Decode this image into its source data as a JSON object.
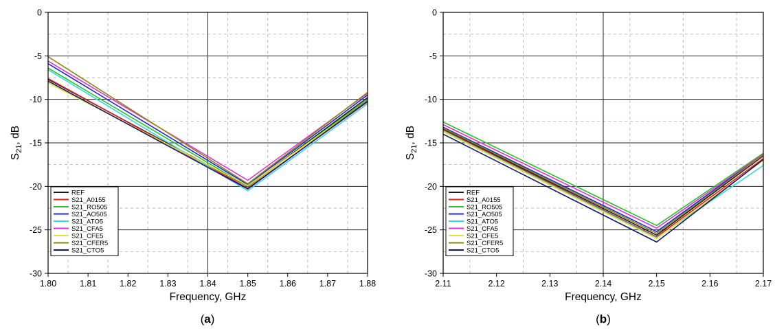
{
  "chart_data": [
    {
      "type": "line",
      "panel_label": "(a)",
      "panel_letter": "a",
      "xlabel": "Frequency, GHz",
      "ylabel": "S21, dB",
      "xlim": [
        1.8,
        1.88
      ],
      "ylim": [
        -30,
        0
      ],
      "xticks": [
        "1.80",
        "1.81",
        "1.82",
        "1.83",
        "1.84",
        "1.85",
        "1.86",
        "1.87",
        "1.88"
      ],
      "yticks": [
        "0",
        "-5",
        "-10",
        "-15",
        "-20",
        "-25",
        "-30"
      ],
      "grid": true,
      "legend_position": "bottom-left",
      "x": [
        1.8,
        1.85,
        1.88
      ],
      "series": [
        {
          "name": "REF",
          "color": "#1a1a1a",
          "values": [
            -7.7,
            -20.0,
            -9.8
          ]
        },
        {
          "name": "S21_A0155",
          "color": "#e02020",
          "values": [
            -7.6,
            -20.2,
            -10.3
          ]
        },
        {
          "name": "S21_RO505",
          "color": "#22c422",
          "values": [
            -6.4,
            -20.0,
            -10.0
          ]
        },
        {
          "name": "S21_AO505",
          "color": "#2424d6",
          "values": [
            -5.9,
            -19.8,
            -9.5
          ]
        },
        {
          "name": "S21_ATO5",
          "color": "#33d6e6",
          "values": [
            -6.6,
            -20.5,
            -10.5
          ]
        },
        {
          "name": "S21_CFA5",
          "color": "#e030e0",
          "values": [
            -5.6,
            -19.3,
            -9.3
          ]
        },
        {
          "name": "S21_CFE5",
          "color": "#e8e030",
          "values": [
            -8.1,
            -19.9,
            -10.2
          ]
        },
        {
          "name": "S21_CFER5",
          "color": "#8a8a10",
          "values": [
            -5.1,
            -19.7,
            -9.2
          ]
        },
        {
          "name": "S21_CTO5",
          "color": "#16166e",
          "values": [
            -7.9,
            -20.3,
            -10.2
          ]
        }
      ]
    },
    {
      "type": "line",
      "panel_label": "(b)",
      "panel_letter": "b",
      "xlabel": "Frequency, GHz",
      "ylabel": "S21, dB",
      "xlim": [
        2.11,
        2.17
      ],
      "ylim": [
        -30,
        0
      ],
      "xticks": [
        "2.11",
        "2.12",
        "2.13",
        "2.14",
        "2.15",
        "2.16",
        "2.17"
      ],
      "yticks": [
        "0",
        "-5",
        "-10",
        "-15",
        "-20",
        "-25",
        "-30"
      ],
      "grid": true,
      "legend_position": "bottom-left",
      "x": [
        2.11,
        2.15,
        2.17
      ],
      "series": [
        {
          "name": "REF",
          "color": "#1a1a1a",
          "values": [
            -13.4,
            -25.6,
            -16.5
          ]
        },
        {
          "name": "S21_A0155",
          "color": "#e02020",
          "values": [
            -13.5,
            -25.8,
            -16.8
          ]
        },
        {
          "name": "S21_RO505",
          "color": "#22c422",
          "values": [
            -12.6,
            -24.5,
            -16.2
          ]
        },
        {
          "name": "S21_AO505",
          "color": "#2424d6",
          "values": [
            -13.2,
            -25.2,
            -16.3
          ]
        },
        {
          "name": "S21_ATO5",
          "color": "#33d6e6",
          "values": [
            -13.6,
            -25.9,
            -17.6
          ]
        },
        {
          "name": "S21_CFA5",
          "color": "#e030e0",
          "values": [
            -12.9,
            -24.8,
            -16.3
          ]
        },
        {
          "name": "S21_CFE5",
          "color": "#e8e030",
          "values": [
            -13.7,
            -26.0,
            -17.0
          ]
        },
        {
          "name": "S21_CFER5",
          "color": "#8a8a10",
          "values": [
            -13.3,
            -25.4,
            -16.4
          ]
        },
        {
          "name": "S21_CTO5",
          "color": "#16166e",
          "values": [
            -14.0,
            -26.4,
            -16.9
          ]
        }
      ]
    }
  ]
}
